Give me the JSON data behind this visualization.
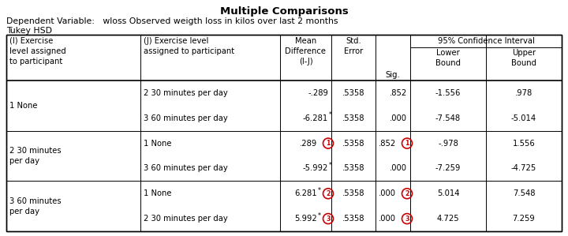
{
  "title": "Multiple Comparisons",
  "subtitle1": "Dependent Variable:   wloss Observed weigth loss in kilos over last 2 months",
  "subtitle2": "Tukey HSD",
  "rows": [
    {
      "i_group": 0,
      "j_label": "2 30 minutes per day",
      "mean_diff": "-.289",
      "mean_star": false,
      "std_err": ".5358",
      "sig": ".852",
      "lower": "-1.556",
      "upper": ".978",
      "circle": null
    },
    {
      "i_group": 0,
      "j_label": "3 60 minutes per day",
      "mean_diff": "-6.281",
      "mean_star": true,
      "std_err": ".5358",
      "sig": ".000",
      "lower": "-7.548",
      "upper": "-5.014",
      "circle": null
    },
    {
      "i_group": 1,
      "j_label": "1 None",
      "mean_diff": ".289",
      "mean_star": false,
      "std_err": ".5358",
      "sig": ".852",
      "lower": "-.978",
      "upper": "1.556",
      "circle": "1"
    },
    {
      "i_group": 1,
      "j_label": "3 60 minutes per day",
      "mean_diff": "-5.992",
      "mean_star": true,
      "std_err": ".5358",
      "sig": ".000",
      "lower": "-7.259",
      "upper": "-4.725",
      "circle": null
    },
    {
      "i_group": 2,
      "j_label": "1 None",
      "mean_diff": "6.281",
      "mean_star": true,
      "std_err": ".5358",
      "sig": ".000",
      "lower": "5.014",
      "upper": "7.548",
      "circle": "2"
    },
    {
      "i_group": 2,
      "j_label": "2 30 minutes per day",
      "mean_diff": "5.992",
      "mean_star": true,
      "std_err": ".5358",
      "sig": ".000",
      "lower": "4.725",
      "upper": "7.259",
      "circle": "3"
    }
  ],
  "i_labels": [
    "1 None",
    "2 30 minutes\nper day",
    "3 60 minutes\nper day"
  ],
  "circle_color": "#CC0000",
  "bg_color": "#ffffff",
  "border_color": "#000000",
  "text_color": "#000000"
}
